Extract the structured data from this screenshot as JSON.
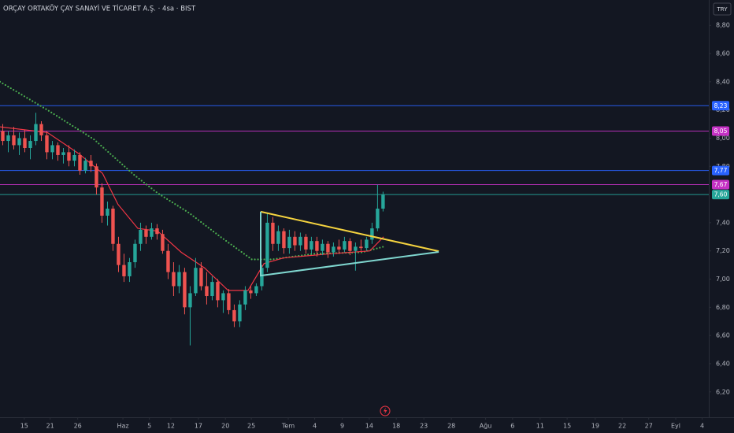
{
  "chart_data": {
    "type": "candlestick",
    "title": "ORÇAY ORTAKÖY ÇAY SANAYİ VE TİCARET A.Ş. · 4sa · BIST",
    "currency": "TRY",
    "up_color": "#26a69a",
    "down_color": "#ef5350",
    "grid": false,
    "xlim": [
      -0.5,
      128.1
    ],
    "ylim": [
      6.02,
      8.98
    ],
    "yticks": [
      {
        "value": 8.8,
        "label": "8,80"
      },
      {
        "value": 8.6,
        "label": "8,60"
      },
      {
        "value": 8.4,
        "label": "8,40"
      },
      {
        "value": 8.2,
        "label": "8,20"
      },
      {
        "value": 8.0,
        "label": "8,00"
      },
      {
        "value": 7.8,
        "label": "7,80"
      },
      {
        "value": 7.4,
        "label": "7,40"
      },
      {
        "value": 7.2,
        "label": "7,20"
      },
      {
        "value": 7.0,
        "label": "7,00"
      },
      {
        "value": 6.8,
        "label": "6,80"
      },
      {
        "value": 6.6,
        "label": "6,60"
      },
      {
        "value": 6.4,
        "label": "6,40"
      },
      {
        "value": 6.2,
        "label": "6,20"
      }
    ],
    "xticks": [
      {
        "value": 3.9,
        "label": "15"
      },
      {
        "value": 8.6,
        "label": "21"
      },
      {
        "value": 13.6,
        "label": "26"
      },
      {
        "value": 21.8,
        "label": "Haz"
      },
      {
        "value": 26.6,
        "label": "5"
      },
      {
        "value": 30.5,
        "label": "12"
      },
      {
        "value": 35.5,
        "label": "17"
      },
      {
        "value": 40.4,
        "label": "20"
      },
      {
        "value": 45.1,
        "label": "25"
      },
      {
        "value": 51.8,
        "label": "Tem"
      },
      {
        "value": 56.6,
        "label": "4"
      },
      {
        "value": 61.6,
        "label": "9"
      },
      {
        "value": 66.5,
        "label": "14"
      },
      {
        "value": 71.4,
        "label": "18"
      },
      {
        "value": 76.4,
        "label": "23"
      },
      {
        "value": 81.4,
        "label": "28"
      },
      {
        "value": 87.6,
        "label": "Ağu"
      },
      {
        "value": 92.5,
        "label": "6"
      },
      {
        "value": 97.5,
        "label": "11"
      },
      {
        "value": 102.4,
        "label": "15"
      },
      {
        "value": 107.5,
        "label": "19"
      },
      {
        "value": 112.4,
        "label": "22"
      },
      {
        "value": 117.2,
        "label": "27"
      },
      {
        "value": 122.1,
        "label": "Eyl"
      },
      {
        "value": 126.9,
        "label": "4"
      }
    ],
    "x": [
      0,
      1,
      2,
      3,
      4,
      5,
      6,
      7,
      8,
      9,
      10,
      11,
      12,
      13,
      14,
      15,
      16,
      17,
      18,
      19,
      20,
      21,
      22,
      23,
      24,
      25,
      26,
      27,
      28,
      29,
      30,
      31,
      32,
      33,
      34,
      35,
      36,
      37,
      38,
      39,
      40,
      41,
      42,
      43,
      44,
      45,
      46,
      47,
      48,
      49,
      50,
      51,
      52,
      53,
      54,
      55,
      56,
      57,
      58,
      59,
      60,
      61,
      62,
      63,
      64,
      65,
      66,
      67,
      68,
      69
    ],
    "open": [
      8.05,
      7.98,
      8.02,
      7.95,
      8.0,
      7.93,
      7.98,
      8.1,
      8.02,
      7.9,
      7.95,
      7.88,
      7.9,
      7.84,
      7.88,
      7.77,
      7.84,
      7.8,
      7.65,
      7.45,
      7.5,
      7.25,
      7.1,
      7.02,
      7.12,
      7.25,
      7.35,
      7.3,
      7.36,
      7.32,
      7.2,
      7.05,
      6.95,
      7.05,
      6.8,
      6.9,
      7.08,
      6.95,
      6.88,
      6.98,
      6.85,
      6.9,
      6.78,
      6.7,
      6.82,
      6.92,
      6.9,
      6.95,
      7.08,
      7.4,
      7.25,
      7.34,
      7.22,
      7.3,
      7.24,
      7.3,
      7.21,
      7.27,
      7.2,
      7.25,
      7.19,
      7.23,
      7.21,
      7.27,
      7.2,
      7.23,
      7.22,
      7.28,
      7.36,
      7.5
    ],
    "high": [
      8.1,
      8.05,
      8.08,
      8.04,
      8.06,
      8.02,
      8.18,
      8.12,
      8.05,
      7.98,
      7.97,
      7.93,
      7.95,
      7.92,
      7.9,
      7.86,
      7.88,
      7.82,
      7.68,
      7.55,
      7.52,
      7.3,
      7.18,
      7.15,
      7.28,
      7.4,
      7.38,
      7.4,
      7.39,
      7.35,
      7.25,
      7.12,
      7.1,
      7.08,
      6.95,
      7.15,
      7.12,
      7.05,
      7.02,
      7.0,
      6.92,
      6.93,
      6.82,
      6.85,
      6.95,
      6.95,
      6.97,
      7.1,
      7.47,
      7.44,
      7.38,
      7.36,
      7.35,
      7.34,
      7.33,
      7.32,
      7.3,
      7.3,
      7.28,
      7.27,
      7.26,
      7.28,
      7.3,
      7.29,
      7.26,
      7.28,
      7.3,
      7.4,
      7.67,
      7.62
    ],
    "low": [
      7.95,
      7.9,
      7.92,
      7.88,
      7.9,
      7.85,
      7.95,
      7.98,
      7.85,
      7.85,
      7.84,
      7.82,
      7.8,
      7.8,
      7.74,
      7.75,
      7.76,
      7.6,
      7.4,
      7.38,
      7.2,
      7.05,
      6.98,
      6.98,
      7.08,
      7.2,
      7.25,
      7.28,
      7.28,
      7.18,
      7.0,
      6.88,
      6.9,
      6.75,
      6.53,
      6.88,
      6.92,
      6.82,
      6.85,
      6.8,
      6.76,
      6.75,
      6.66,
      6.66,
      6.78,
      6.86,
      6.88,
      6.92,
      7.05,
      7.2,
      7.2,
      7.18,
      7.18,
      7.2,
      7.2,
      7.18,
      7.18,
      7.16,
      7.17,
      7.15,
      7.16,
      7.18,
      7.19,
      7.17,
      7.06,
      7.2,
      7.2,
      7.25,
      7.34,
      7.48
    ],
    "close": [
      7.98,
      8.02,
      7.95,
      8.0,
      7.93,
      7.98,
      8.1,
      8.02,
      7.9,
      7.95,
      7.88,
      7.9,
      7.84,
      7.88,
      7.77,
      7.84,
      7.8,
      7.65,
      7.45,
      7.5,
      7.25,
      7.1,
      7.02,
      7.12,
      7.25,
      7.35,
      7.3,
      7.36,
      7.32,
      7.2,
      7.05,
      6.95,
      7.05,
      6.8,
      6.9,
      7.08,
      6.95,
      6.88,
      6.98,
      6.85,
      6.9,
      6.78,
      6.7,
      6.82,
      6.92,
      6.9,
      6.95,
      7.08,
      7.4,
      7.25,
      7.34,
      7.22,
      7.3,
      7.24,
      7.3,
      7.21,
      7.27,
      7.2,
      7.25,
      7.19,
      7.23,
      7.21,
      7.27,
      7.2,
      7.23,
      7.22,
      7.28,
      7.36,
      7.5,
      7.6
    ],
    "lines": [
      {
        "color": "#4caf50",
        "style": "dotted",
        "x": [
          -0.5,
          8.1,
          16.6,
          23.8,
          28.1,
          33.8,
          39.5,
          45.2,
          48.8,
          56.6,
          65.2,
          69.1
        ],
        "values": [
          8.4,
          8.2,
          7.99,
          7.74,
          7.61,
          7.47,
          7.3,
          7.14,
          7.14,
          7.18,
          7.19,
          7.23
        ]
      },
      {
        "color": "#f23645",
        "style": "solid",
        "x": [
          -0.5,
          8.1,
          13.8,
          18.1,
          20.9,
          24.5,
          28.1,
          32.4,
          36.6,
          40.9,
          44.5,
          47.4,
          50.9,
          59.5,
          66.6,
          69.1
        ],
        "values": [
          8.08,
          8.04,
          7.89,
          7.75,
          7.53,
          7.36,
          7.34,
          7.19,
          7.08,
          6.92,
          6.92,
          7.11,
          7.15,
          7.18,
          7.2,
          7.3
        ]
      }
    ],
    "levels": [
      {
        "value": 8.23,
        "label": "8,23",
        "color": "#2962ff"
      },
      {
        "value": 8.05,
        "label": "8,05",
        "color": "#c531c5"
      },
      {
        "value": 7.77,
        "label": "7,77",
        "color": "#2962ff"
      },
      {
        "value": 7.67,
        "label": "7,67",
        "color": "#c531c5"
      },
      {
        "value": 7.6,
        "label": "7,60",
        "color": "#26a69a"
      }
    ],
    "trendlines": [
      {
        "color": "#f5d33f",
        "x": [
          46.8,
          79.1
        ],
        "values": [
          7.478,
          7.198
        ]
      },
      {
        "color": "#7fd6cf",
        "x": [
          46.8,
          46.8,
          79.1
        ],
        "values": [
          7.478,
          7.025,
          7.193
        ]
      }
    ]
  }
}
